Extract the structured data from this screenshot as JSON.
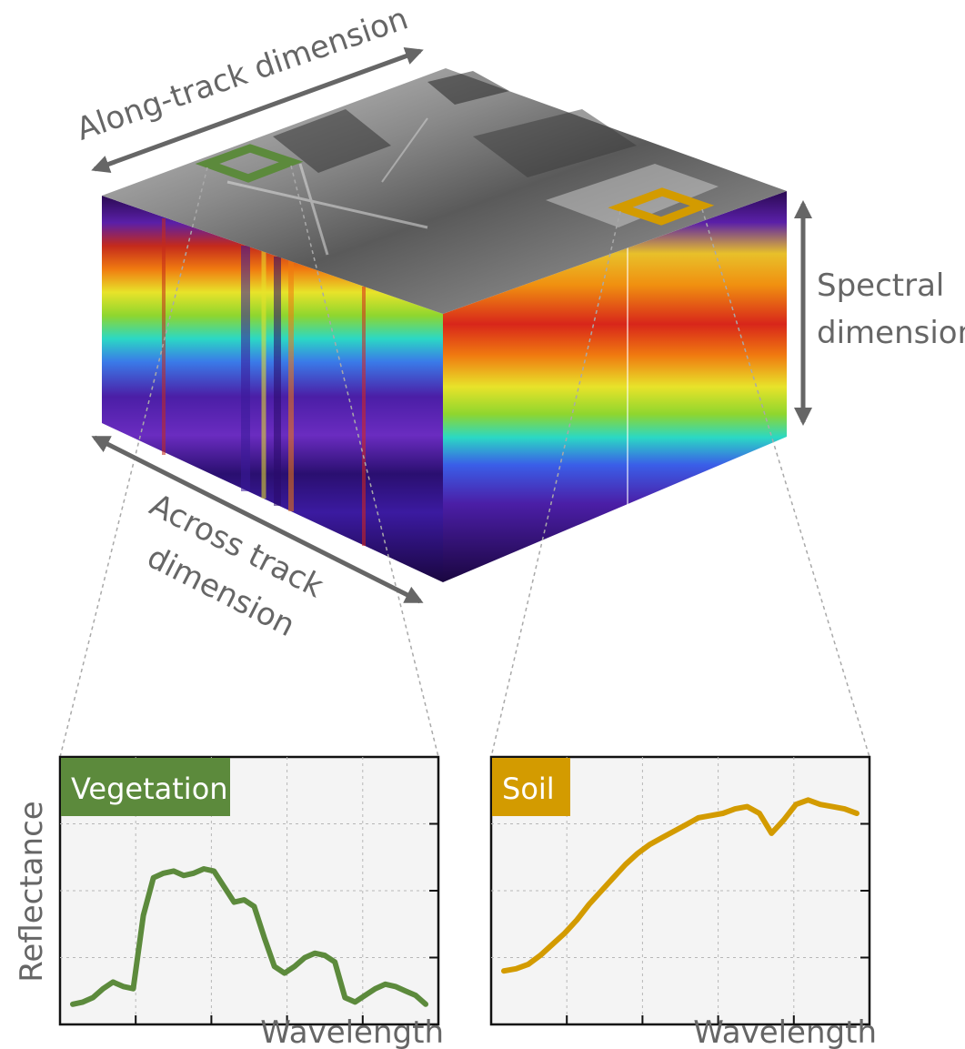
{
  "labels": {
    "along_track": "Along-track dimension",
    "spectral_line1": "Spectral",
    "spectral_line2": "dimension",
    "across_line1": "Across track",
    "across_line2": "dimension"
  },
  "colors": {
    "arrow": "#666666",
    "vegetation": "#5c8a3c",
    "soil": "#d39b00",
    "panel_bg": "#f4f4f4",
    "grid": "#b7b7b7"
  },
  "panels": [
    {
      "id": "vegetation",
      "title": "Vegetation",
      "ylabel": "Reflectance",
      "xlabel": "Wavelength",
      "color": "#5c8a3c",
      "values": [
        0.05,
        0.06,
        0.08,
        0.12,
        0.15,
        0.13,
        0.12,
        0.45,
        0.62,
        0.64,
        0.65,
        0.63,
        0.64,
        0.66,
        0.65,
        0.58,
        0.51,
        0.52,
        0.49,
        0.35,
        0.22,
        0.19,
        0.22,
        0.26,
        0.28,
        0.27,
        0.24,
        0.08,
        0.06,
        0.09,
        0.12,
        0.14,
        0.13,
        0.11,
        0.09,
        0.05
      ]
    },
    {
      "id": "soil",
      "title": "Soil",
      "ylabel": "",
      "xlabel": "Wavelength",
      "color": "#d39b00",
      "values": [
        0.2,
        0.21,
        0.23,
        0.27,
        0.32,
        0.37,
        0.43,
        0.5,
        0.56,
        0.62,
        0.68,
        0.73,
        0.77,
        0.8,
        0.83,
        0.86,
        0.89,
        0.9,
        0.91,
        0.93,
        0.94,
        0.91,
        0.82,
        0.88,
        0.95,
        0.97,
        0.95,
        0.94,
        0.93,
        0.91
      ]
    }
  ]
}
